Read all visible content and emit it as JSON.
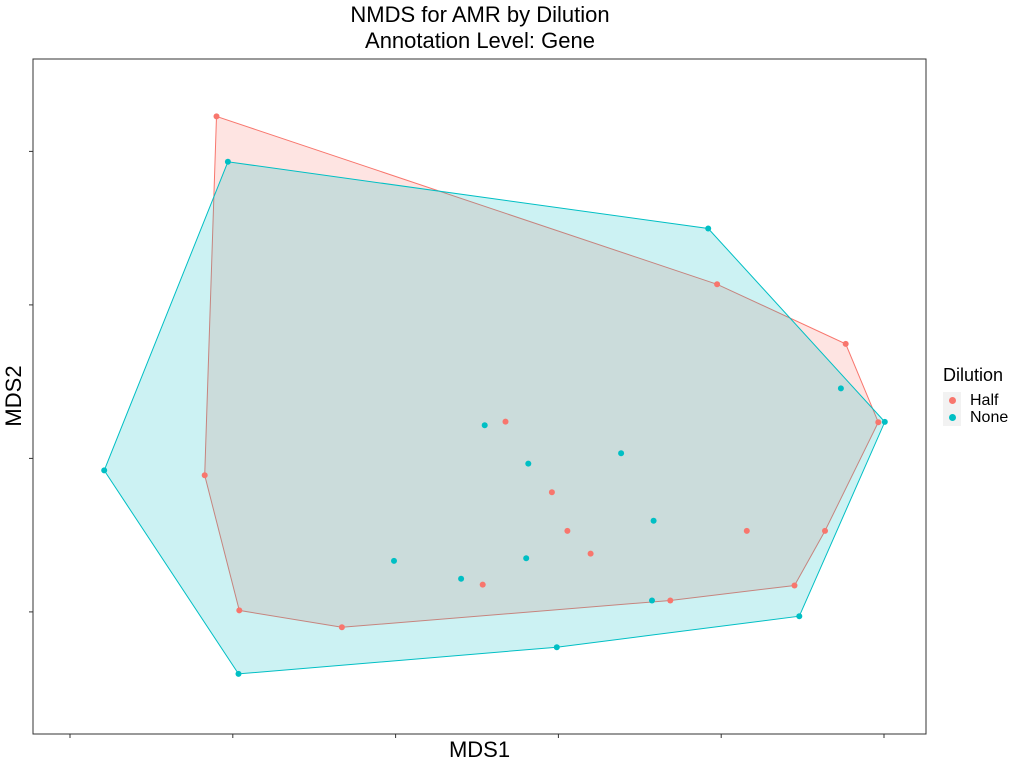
{
  "chart_data": {
    "type": "scatter",
    "title": "NMDS for AMR by Dilution",
    "subtitle": "Annotation Level: Gene",
    "xlabel": "MDS1",
    "ylabel": "MDS2",
    "xlim": [
      -1.0,
      1.0
    ],
    "ylim": [
      -1.0,
      1.0
    ],
    "grid": false,
    "legend": {
      "title": "Dilution",
      "position": "right"
    },
    "hulls": true,
    "series": [
      {
        "name": "Half",
        "color": "#F8766D",
        "points": [
          [
            -0.64,
            0.914
          ],
          [
            0.59,
            0.367
          ],
          [
            0.906,
            0.173
          ],
          [
            0.986,
            -0.082
          ],
          [
            -0.669,
            -0.255
          ],
          [
            0.07,
            -0.08
          ],
          [
            0.184,
            -0.31
          ],
          [
            0.222,
            -0.436
          ],
          [
            0.663,
            -0.436
          ],
          [
            0.855,
            -0.436
          ],
          [
            0.279,
            -0.51
          ],
          [
            0.78,
            -0.614
          ],
          [
            0.014,
            -0.611
          ],
          [
            0.475,
            -0.663
          ],
          [
            -0.584,
            -0.695
          ],
          [
            -0.332,
            -0.75
          ]
        ]
      },
      {
        "name": "None",
        "color": "#00BFC4",
        "points": [
          [
            -0.612,
            0.766
          ],
          [
            0.568,
            0.549
          ],
          [
            0.894,
            0.028
          ],
          [
            1.002,
            -0.081
          ],
          [
            -0.916,
            -0.239
          ],
          [
            0.019,
            -0.092
          ],
          [
            0.126,
            -0.217
          ],
          [
            0.354,
            -0.183
          ],
          [
            0.434,
            -0.403
          ],
          [
            -0.204,
            -0.534
          ],
          [
            -0.039,
            -0.592
          ],
          [
            0.121,
            -0.525
          ],
          [
            0.43,
            -0.663
          ],
          [
            0.792,
            -0.714
          ],
          [
            0.196,
            -0.815
          ],
          [
            -0.586,
            -0.902
          ]
        ]
      }
    ]
  }
}
